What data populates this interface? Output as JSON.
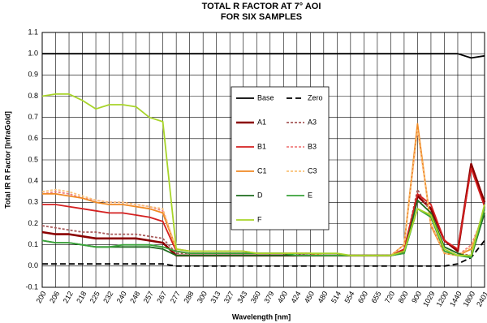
{
  "chart_data": {
    "type": "line",
    "title": [
      "TOTAL R FACTOR AT 7° AOI",
      "FOR SIX SAMPLES"
    ],
    "x_label": "Wavelength [nm]",
    "y_label": "Total IR R Factor [InfraGold]",
    "categories": [
      "200",
      "206",
      "212",
      "218",
      "225",
      "232",
      "240",
      "248",
      "257",
      "267",
      "277",
      "288",
      "300",
      "313",
      "327",
      "343",
      "360",
      "379",
      "400",
      "424",
      "450",
      "480",
      "514",
      "554",
      "600",
      "655",
      "720",
      "800",
      "900",
      "1029",
      "1200",
      "1440",
      "1800",
      "2401"
    ],
    "ylim": [
      -0.1,
      1.1
    ],
    "yticks": [
      -0.1,
      {
        "value": 0,
        "label": "0.0"
      },
      0.1,
      0.2,
      0.3,
      0.4,
      0.5,
      0.6,
      0.7,
      0.8,
      0.9,
      {
        "value": 1,
        "label": "1.0"
      },
      1.1
    ],
    "grid": true,
    "series": [
      {
        "name": "Base",
        "color": "#000000",
        "style": "solid",
        "values": [
          1.0,
          1.0,
          1.0,
          1.0,
          1.0,
          1.0,
          1.0,
          1.0,
          1.0,
          1.0,
          1.0,
          1.0,
          1.0,
          1.0,
          1.0,
          1.0,
          1.0,
          1.0,
          1.0,
          1.0,
          1.0,
          1.0,
          1.0,
          1.0,
          1.0,
          1.0,
          1.0,
          1.0,
          1.0,
          1.0,
          1.0,
          1.0,
          0.98,
          0.99
        ]
      },
      {
        "name": "Zero",
        "color": "#000000",
        "style": "dashed",
        "values": [
          0.01,
          0.01,
          0.01,
          0.01,
          0.01,
          0.01,
          0.01,
          0.01,
          0.01,
          0.01,
          0.0,
          0.0,
          0.0,
          0.0,
          0.0,
          0.0,
          0.0,
          0.0,
          0.0,
          0.0,
          0.0,
          0.0,
          0.0,
          0.0,
          0.0,
          0.0,
          0.0,
          0.0,
          0.0,
          0.0,
          0.0,
          0.01,
          0.04,
          0.12
        ]
      },
      {
        "name": "A1",
        "color": "#8b0000",
        "style": "thick",
        "values": [
          0.16,
          0.15,
          0.15,
          0.14,
          0.13,
          0.13,
          0.13,
          0.13,
          0.12,
          0.11,
          0.05,
          0.05,
          0.05,
          0.05,
          0.05,
          0.05,
          0.05,
          0.05,
          0.05,
          0.05,
          0.05,
          0.05,
          0.05,
          0.05,
          0.05,
          0.05,
          0.05,
          0.07,
          0.33,
          0.27,
          0.12,
          0.07,
          0.48,
          0.3
        ]
      },
      {
        "name": "A3",
        "color": "#a85a5a",
        "style": "dashed",
        "values": [
          0.19,
          0.18,
          0.17,
          0.16,
          0.16,
          0.15,
          0.15,
          0.15,
          0.14,
          0.13,
          0.06,
          0.06,
          0.06,
          0.06,
          0.06,
          0.06,
          0.06,
          0.06,
          0.06,
          0.06,
          0.05,
          0.05,
          0.05,
          0.05,
          0.05,
          0.05,
          0.05,
          0.07,
          0.36,
          0.25,
          0.09,
          0.06,
          0.05,
          0.28
        ]
      },
      {
        "name": "B1",
        "color": "#d42020",
        "style": "solid",
        "values": [
          0.29,
          0.29,
          0.28,
          0.27,
          0.26,
          0.25,
          0.25,
          0.24,
          0.23,
          0.21,
          0.07,
          0.06,
          0.06,
          0.06,
          0.06,
          0.06,
          0.06,
          0.06,
          0.06,
          0.06,
          0.06,
          0.05,
          0.05,
          0.05,
          0.05,
          0.05,
          0.05,
          0.08,
          0.34,
          0.29,
          0.12,
          0.08,
          0.46,
          0.28
        ]
      },
      {
        "name": "B3",
        "color": "#f08080",
        "style": "dashed",
        "values": [
          0.34,
          0.35,
          0.34,
          0.32,
          0.31,
          0.3,
          0.3,
          0.29,
          0.28,
          0.26,
          0.08,
          0.07,
          0.07,
          0.07,
          0.07,
          0.07,
          0.06,
          0.06,
          0.06,
          0.06,
          0.06,
          0.05,
          0.05,
          0.05,
          0.05,
          0.05,
          0.05,
          0.1,
          0.65,
          0.2,
          0.06,
          0.05,
          0.1,
          0.25
        ]
      },
      {
        "name": "C1",
        "color": "#f08a24",
        "style": "solid",
        "values": [
          0.34,
          0.34,
          0.33,
          0.32,
          0.3,
          0.29,
          0.29,
          0.28,
          0.27,
          0.25,
          0.08,
          0.07,
          0.07,
          0.07,
          0.07,
          0.07,
          0.06,
          0.06,
          0.06,
          0.06,
          0.06,
          0.05,
          0.05,
          0.05,
          0.05,
          0.05,
          0.05,
          0.1,
          0.67,
          0.19,
          0.06,
          0.05,
          0.08,
          0.25
        ]
      },
      {
        "name": "C3",
        "color": "#f9c27a",
        "style": "dashed",
        "values": [
          0.35,
          0.36,
          0.35,
          0.33,
          0.31,
          0.3,
          0.3,
          0.29,
          0.28,
          0.27,
          0.08,
          0.07,
          0.07,
          0.07,
          0.07,
          0.07,
          0.06,
          0.06,
          0.06,
          0.06,
          0.06,
          0.05,
          0.05,
          0.05,
          0.05,
          0.05,
          0.05,
          0.1,
          0.64,
          0.2,
          0.06,
          0.05,
          0.09,
          0.26
        ]
      },
      {
        "name": "D",
        "color": "#1e6b1e",
        "style": "solid",
        "values": [
          0.12,
          0.11,
          0.11,
          0.1,
          0.09,
          0.09,
          0.09,
          0.09,
          0.09,
          0.08,
          0.05,
          0.05,
          0.05,
          0.05,
          0.05,
          0.05,
          0.05,
          0.05,
          0.05,
          0.05,
          0.05,
          0.05,
          0.05,
          0.05,
          0.05,
          0.05,
          0.05,
          0.06,
          0.31,
          0.25,
          0.09,
          0.06,
          0.04,
          0.25
        ]
      },
      {
        "name": "E",
        "color": "#3aa33a",
        "style": "solid",
        "values": [
          0.12,
          0.11,
          0.11,
          0.1,
          0.09,
          0.09,
          0.1,
          0.1,
          0.1,
          0.09,
          0.07,
          0.06,
          0.06,
          0.06,
          0.06,
          0.06,
          0.06,
          0.06,
          0.06,
          0.05,
          0.05,
          0.05,
          0.05,
          0.05,
          0.05,
          0.05,
          0.05,
          0.06,
          0.27,
          0.23,
          0.07,
          0.05,
          0.04,
          0.27
        ]
      },
      {
        "name": "F",
        "color": "#a8d42a",
        "style": "solid",
        "values": [
          0.8,
          0.81,
          0.81,
          0.78,
          0.74,
          0.76,
          0.76,
          0.75,
          0.7,
          0.68,
          0.08,
          0.07,
          0.07,
          0.07,
          0.07,
          0.07,
          0.06,
          0.06,
          0.06,
          0.06,
          0.06,
          0.06,
          0.06,
          0.05,
          0.05,
          0.05,
          0.05,
          0.07,
          0.27,
          0.24,
          0.08,
          0.05,
          0.05,
          0.29
        ]
      }
    ]
  }
}
